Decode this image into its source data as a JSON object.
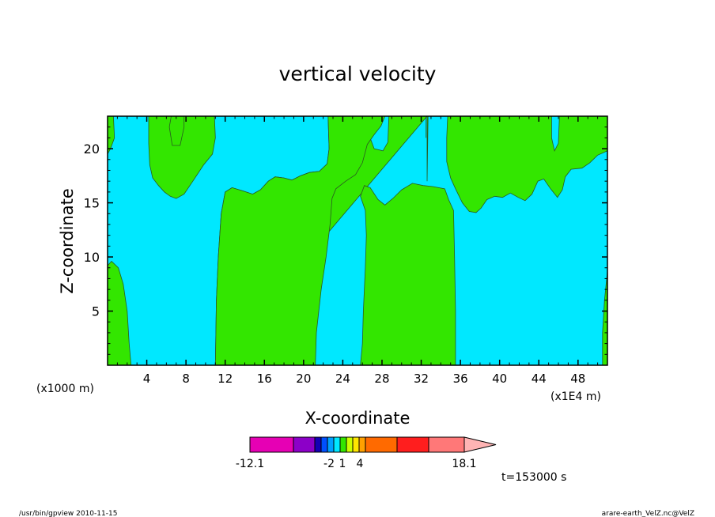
{
  "chart_data": {
    "type": "heatmap",
    "title": "vertical velocity",
    "xlabel": "X-coordinate",
    "ylabel": "Z-coordinate",
    "x_scale_note": "(x1000 m)",
    "x_units_note": "(x1E4 m)",
    "xlim": [
      0,
      51
    ],
    "ylim": [
      0,
      23
    ],
    "x_ticks": [
      4,
      8,
      12,
      16,
      20,
      24,
      28,
      32,
      36,
      40,
      44,
      48
    ],
    "y_ticks": [
      5,
      10,
      15,
      20
    ],
    "contour_fill_colors": {
      "background": "#00e8ff",
      "positive": "#33e600"
    },
    "contour_regions": [
      {
        "level": "positive",
        "boundary": [
          [
            0,
            23
          ],
          [
            0.6,
            23
          ],
          [
            0.7,
            21
          ],
          [
            0.3,
            20
          ],
          [
            0,
            19.5
          ]
        ]
      },
      {
        "level": "positive",
        "boundary": [
          [
            0,
            9.2
          ],
          [
            0.4,
            9.6
          ],
          [
            1.1,
            9.0
          ],
          [
            1.6,
            7.5
          ],
          [
            2.0,
            5.0
          ],
          [
            2.2,
            2.0
          ],
          [
            2.4,
            0
          ],
          [
            0,
            0
          ]
        ]
      },
      {
        "level": "positive",
        "boundary": [
          [
            4.2,
            23
          ],
          [
            7.8,
            23
          ],
          [
            7.8,
            22
          ],
          [
            7.4,
            20.3
          ],
          [
            6.6,
            20.3
          ],
          [
            6.3,
            22
          ],
          [
            6.5,
            23
          ],
          [
            10.9,
            23
          ],
          [
            11,
            21
          ],
          [
            10.7,
            19.5
          ],
          [
            9.8,
            18.5
          ],
          [
            8.7,
            17
          ],
          [
            7.8,
            15.8
          ],
          [
            7,
            15.4
          ],
          [
            6.4,
            15.6
          ],
          [
            5.8,
            16
          ],
          [
            5.2,
            16.6
          ],
          [
            4.6,
            17.3
          ],
          [
            4.3,
            18.5
          ],
          [
            4.2,
            20.5
          ]
        ]
      },
      {
        "level": "positive",
        "boundary": [
          [
            11,
            0
          ],
          [
            11.1,
            6
          ],
          [
            11.3,
            10
          ],
          [
            11.6,
            14
          ],
          [
            12,
            16
          ],
          [
            12.7,
            16.4
          ],
          [
            13.8,
            16.1
          ],
          [
            14.8,
            15.8
          ],
          [
            15.6,
            16.2
          ],
          [
            16.4,
            17
          ],
          [
            17.1,
            17.4
          ],
          [
            18,
            17.3
          ],
          [
            18.8,
            17.1
          ],
          [
            19.7,
            17.5
          ],
          [
            20.6,
            17.8
          ],
          [
            21.6,
            17.9
          ],
          [
            22.4,
            18.6
          ],
          [
            22.6,
            20
          ],
          [
            22.5,
            23
          ],
          [
            26.4,
            23
          ],
          [
            26.7,
            21.2
          ],
          [
            27.2,
            20
          ],
          [
            28.1,
            19.8
          ],
          [
            28.6,
            20.6
          ],
          [
            28.7,
            23
          ],
          [
            32.6,
            23
          ],
          [
            32.6,
            17
          ],
          [
            32.7,
            23
          ],
          [
            32.5,
            23
          ],
          [
            32.7,
            23
          ],
          [
            32.6,
            23
          ],
          [
            32.5,
            23
          ],
          [
            32.5,
            21
          ],
          [
            32.5,
            23
          ],
          [
            32.6,
            23
          ]
        ]
      },
      {
        "level": "positive",
        "boundary": [
          [
            22.5,
            23
          ],
          [
            22.6,
            20
          ],
          [
            22.4,
            18.6
          ],
          [
            21.6,
            17.9
          ],
          [
            20.6,
            17.8
          ],
          [
            19.7,
            17.5
          ],
          [
            18.8,
            17.1
          ],
          [
            18,
            17.3
          ],
          [
            17.1,
            17.4
          ],
          [
            16.4,
            17
          ],
          [
            15.6,
            16.2
          ],
          [
            14.8,
            15.8
          ],
          [
            13.8,
            16.1
          ],
          [
            12.7,
            16.4
          ],
          [
            12,
            16
          ],
          [
            11.6,
            14
          ],
          [
            11.3,
            10
          ],
          [
            11.1,
            6
          ],
          [
            11,
            0
          ],
          [
            21.2,
            0
          ],
          [
            21.3,
            3
          ],
          [
            21.8,
            7
          ],
          [
            22.3,
            10
          ],
          [
            22.7,
            13
          ],
          [
            22.9,
            15.4
          ],
          [
            23.3,
            16.3
          ],
          [
            24.3,
            17
          ],
          [
            25.3,
            17.6
          ],
          [
            26,
            18.7
          ],
          [
            26.5,
            20.4
          ],
          [
            27.2,
            21.3
          ],
          [
            27.9,
            22.1
          ],
          [
            28.3,
            23
          ]
        ]
      },
      {
        "level": "positive",
        "boundary": [
          [
            25.8,
            0
          ],
          [
            26,
            2
          ],
          [
            26.1,
            5
          ],
          [
            26.3,
            9
          ],
          [
            26.4,
            12
          ],
          [
            26.3,
            14.3
          ],
          [
            25.8,
            15.6
          ],
          [
            26.2,
            16.6
          ],
          [
            26.8,
            16.4
          ],
          [
            27.6,
            15.3
          ],
          [
            28.3,
            14.8
          ],
          [
            29.1,
            15.4
          ],
          [
            30,
            16.2
          ],
          [
            31.1,
            16.8
          ],
          [
            32.2,
            16.6
          ],
          [
            33.2,
            16.5
          ],
          [
            34.4,
            16.3
          ],
          [
            34.8,
            15.3
          ],
          [
            35.3,
            14.3
          ],
          [
            35.4,
            10
          ],
          [
            35.5,
            5
          ],
          [
            35.5,
            0
          ]
        ]
      },
      {
        "level": "positive",
        "boundary": [
          [
            34.7,
            23
          ],
          [
            45.3,
            23
          ],
          [
            45.3,
            21
          ],
          [
            45.6,
            19.8
          ],
          [
            46,
            20.5
          ],
          [
            46.1,
            23
          ],
          [
            51,
            23
          ],
          [
            51,
            19.8
          ],
          [
            50,
            19.4
          ],
          [
            49.2,
            18.7
          ],
          [
            48.4,
            18.2
          ],
          [
            47.3,
            18.1
          ],
          [
            46.7,
            17.4
          ],
          [
            46.4,
            16.2
          ],
          [
            45.9,
            15.5
          ],
          [
            45.2,
            16.3
          ],
          [
            44.5,
            17.2
          ],
          [
            43.9,
            17
          ],
          [
            43.3,
            15.8
          ],
          [
            42.6,
            15.2
          ],
          [
            41.9,
            15.5
          ],
          [
            41.1,
            15.9
          ],
          [
            40.3,
            15.5
          ],
          [
            39.5,
            15.6
          ],
          [
            38.7,
            15.3
          ],
          [
            38.1,
            14.5
          ],
          [
            37.6,
            14.1
          ],
          [
            36.9,
            14.2
          ],
          [
            36.2,
            15
          ],
          [
            35.5,
            16.3
          ],
          [
            35,
            17.3
          ],
          [
            34.6,
            18.8
          ],
          [
            34.6,
            21
          ]
        ]
      },
      {
        "level": "positive",
        "boundary": [
          [
            51,
            0
          ],
          [
            50.5,
            0
          ],
          [
            50.5,
            3
          ],
          [
            50.7,
            6
          ],
          [
            51,
            8.7
          ]
        ]
      }
    ],
    "colorbar": {
      "tick_labels": [
        "-12.1",
        "-2",
        "1",
        "4",
        "18.1"
      ],
      "colors": [
        "#e600b4",
        "#8c00c8",
        "#1400b4",
        "#0050ff",
        "#00a0ff",
        "#00e8ff",
        "#33e600",
        "#ccff00",
        "#ffe600",
        "#ffa000",
        "#ff6a00",
        "#ff1e1e",
        "#ff7878",
        "#ffb4b4"
      ]
    },
    "time_label": "t=153000 s",
    "footer_left": "/usr/bin/gpview  2010-11-15",
    "footer_right": "arare-earth_VelZ.nc@VelZ"
  }
}
